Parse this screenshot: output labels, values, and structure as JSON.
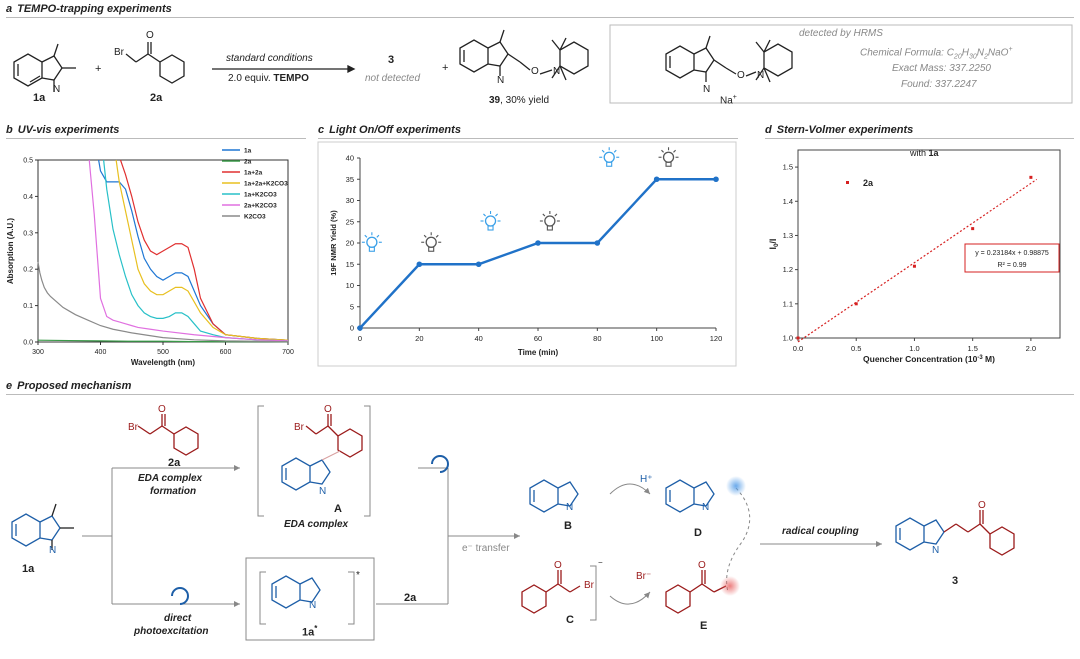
{
  "sections": {
    "a": {
      "letter": "a",
      "title": "TEMPO-trapping experiments"
    },
    "b": {
      "letter": "b",
      "title": "UV-vis experiments"
    },
    "c": {
      "letter": "c",
      "title": "Light On/Off experiments"
    },
    "d": {
      "letter": "d",
      "title": "Stern-Volmer experiments"
    },
    "e": {
      "letter": "e",
      "title": "Proposed mechanism"
    }
  },
  "panel_a": {
    "label_1a": "1a",
    "label_2a": "2a",
    "plus1": "+",
    "plus2": "+",
    "arrow_top": "standard conditions",
    "arrow_bottom_prefix": "2.0 equiv.",
    "arrow_bottom_reagent": "TEMPO",
    "product_3": "3",
    "not_detected": "not detected",
    "product_39": "39",
    "product_39_yield": ", 30% yield",
    "atom_br": "Br",
    "atom_o": "O",
    "atom_n": "N",
    "box_header": "detected by HRMS",
    "na": "Na",
    "formula_label": "Chemical Formula: C",
    "formula_rest": "C20H30N2NaO+",
    "formula_display": [
      "Chemical Formula: C",
      "20",
      "H",
      "30",
      "N",
      "2",
      "NaO",
      "+"
    ],
    "exact_mass": "Exact Mass: 337.2250",
    "found": "Found: 337.2247"
  },
  "chart_data": [
    {
      "type": "line",
      "panel": "b",
      "xlabel": "Wavelength (nm)",
      "ylabel": "Absorption (A.U.)",
      "xlim": [
        300,
        700
      ],
      "ylim": [
        0.0,
        0.5
      ],
      "xticks": [
        "300",
        "400",
        "500",
        "600",
        "700"
      ],
      "yticks": [
        "0.0",
        "0.1",
        "0.2",
        "0.3",
        "0.4",
        "0.5"
      ],
      "legend_position": "top-right",
      "series": [
        {
          "name": "1a",
          "color": "#1f77d4",
          "x": [
            397,
            400,
            410,
            420,
            430,
            440,
            450,
            460,
            470,
            480,
            490,
            500,
            510,
            520,
            530,
            540,
            560,
            580,
            600,
            650,
            700
          ],
          "y": [
            0.5,
            0.47,
            0.44,
            0.44,
            0.44,
            0.42,
            0.36,
            0.29,
            0.23,
            0.2,
            0.18,
            0.17,
            0.18,
            0.19,
            0.19,
            0.18,
            0.1,
            0.05,
            0.02,
            0.01,
            0.005
          ]
        },
        {
          "name": "2a",
          "color": "#3a9a48",
          "x": [
            300,
            350,
            400,
            450,
            500,
            550,
            600,
            650,
            700
          ],
          "y": [
            0.005,
            0.004,
            0.003,
            0.002,
            0.002,
            0.001,
            0.001,
            0.001,
            0.001
          ]
        },
        {
          "name": "1a+2a",
          "color": "#e03030",
          "x": [
            432,
            440,
            450,
            460,
            470,
            480,
            490,
            500,
            510,
            520,
            530,
            540,
            550,
            560,
            580,
            600,
            650,
            700
          ],
          "y": [
            0.5,
            0.46,
            0.4,
            0.33,
            0.28,
            0.25,
            0.24,
            0.25,
            0.26,
            0.27,
            0.27,
            0.26,
            0.2,
            0.12,
            0.05,
            0.02,
            0.01,
            0.005
          ]
        },
        {
          "name": "1a+2a+K2CO3",
          "color": "#e8c020",
          "x": [
            425,
            430,
            440,
            450,
            460,
            470,
            480,
            490,
            500,
            510,
            520,
            530,
            540,
            550,
            560,
            580,
            600,
            650,
            700
          ],
          "y": [
            0.5,
            0.44,
            0.36,
            0.28,
            0.2,
            0.16,
            0.14,
            0.13,
            0.13,
            0.14,
            0.15,
            0.15,
            0.14,
            0.11,
            0.08,
            0.04,
            0.02,
            0.01,
            0.005
          ]
        },
        {
          "name": "1a+K2CO3",
          "color": "#28c0c8",
          "x": [
            405,
            410,
            420,
            430,
            440,
            450,
            460,
            470,
            480,
            490,
            500,
            510,
            520,
            530,
            540,
            550,
            560,
            580,
            600,
            650,
            700
          ],
          "y": [
            0.5,
            0.42,
            0.31,
            0.24,
            0.18,
            0.13,
            0.1,
            0.08,
            0.07,
            0.065,
            0.065,
            0.07,
            0.08,
            0.08,
            0.07,
            0.05,
            0.03,
            0.02,
            0.012,
            0.006,
            0.003
          ]
        },
        {
          "name": "2a+K2CO3",
          "color": "#e070e0",
          "x": [
            382,
            390,
            400,
            410,
            420,
            430,
            440,
            450,
            460,
            480,
            500,
            550,
            600,
            650,
            700
          ],
          "y": [
            0.5,
            0.35,
            0.12,
            0.07,
            0.06,
            0.055,
            0.05,
            0.045,
            0.04,
            0.035,
            0.03,
            0.02,
            0.012,
            0.006,
            0.003
          ]
        },
        {
          "name": "K2CO3",
          "color": "#8a8a8a",
          "x": [
            300,
            303,
            306,
            310,
            315,
            320,
            330,
            340,
            350,
            360,
            380,
            400,
            420,
            450,
            500,
            550,
            600,
            650,
            700
          ],
          "y": [
            0.22,
            0.19,
            0.17,
            0.15,
            0.135,
            0.125,
            0.11,
            0.095,
            0.085,
            0.075,
            0.06,
            0.045,
            0.035,
            0.025,
            0.012,
            0.006,
            0.003,
            0.002,
            0.001
          ]
        }
      ]
    },
    {
      "type": "line",
      "panel": "c",
      "xlabel": "Time (min)",
      "ylabel": "19F NMR Yield (%)",
      "xlim": [
        0,
        120
      ],
      "ylim": [
        0,
        40
      ],
      "xticks": [
        "0",
        "20",
        "40",
        "60",
        "80",
        "100",
        "120"
      ],
      "yticks": [
        "0",
        "5",
        "10",
        "15",
        "20",
        "25",
        "30",
        "35",
        "40"
      ],
      "series": [
        {
          "name": "",
          "color": "#2072c8",
          "x": [
            0,
            20,
            40,
            60,
            80,
            100,
            120
          ],
          "y": [
            0,
            15,
            15,
            20,
            20,
            35,
            35
          ]
        }
      ],
      "bulb_states": [
        "on",
        "off",
        "on",
        "off",
        "on",
        "off"
      ]
    },
    {
      "type": "scatter",
      "panel": "d",
      "title": "with 1a",
      "title_prefix": "with ",
      "title_bold": "1a",
      "legend": "2a",
      "xlabel": "Quencher Concentration (10-3 M)",
      "xlabel_main": "Quencher Concentration (10",
      "xlabel_exp": "-3",
      "xlabel_tail": " M)",
      "ylabel": "I0/I",
      "xlim": [
        0.0,
        2.0
      ],
      "ylim": [
        1.0,
        1.5
      ],
      "xticks": [
        "0.0",
        "0.5",
        "1.0",
        "1.5",
        "2.0"
      ],
      "yticks": [
        "1.0",
        "1.1",
        "1.2",
        "1.3",
        "1.4",
        "1.5"
      ],
      "series": [
        {
          "name": "2a",
          "color": "#d62020",
          "x": [
            0.0,
            0.5,
            1.0,
            1.5,
            2.0
          ],
          "y": [
            1.0,
            1.1,
            1.21,
            1.32,
            1.47
          ]
        }
      ],
      "fit": {
        "slope": 0.23184,
        "intercept": 0.98875,
        "equation": "y = 0.23184x + 0.98875",
        "r2": "R² = 0.99"
      }
    }
  ],
  "panel_e": {
    "label_2a": "2a",
    "eda_formation_1": "EDA complex",
    "eda_formation_2": "formation",
    "label_A": "A",
    "eda_complex": "EDA complex",
    "label_1a": "1a",
    "direct_1": "direct",
    "direct_2": "photoexcitation",
    "label_1a_star": "1a",
    "star": "*",
    "arrow_2a": "2a",
    "e_transfer": "e⁻ transfer",
    "label_B": "B",
    "label_C": "C",
    "label_D": "D",
    "label_E": "E",
    "h_plus": "H⁺",
    "br_minus": "Br⁻",
    "radical_coupling": "radical coupling",
    "label_3": "3",
    "atom_br": "Br",
    "atom_o": "O",
    "atom_n": "N",
    "charge_minus": "−"
  }
}
